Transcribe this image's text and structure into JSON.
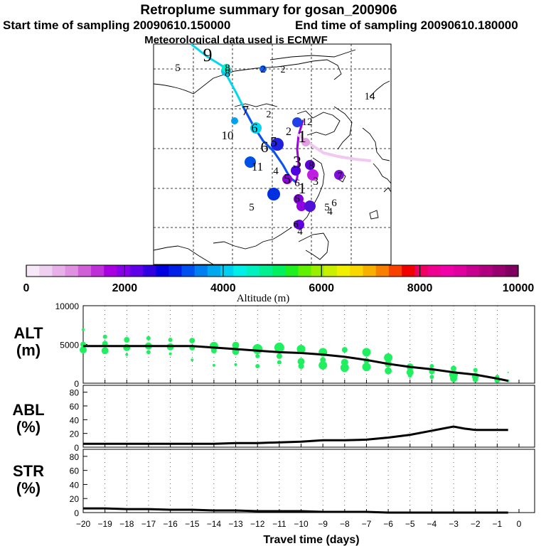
{
  "header": {
    "title": "Retroplume summary for gosan_200906",
    "start": "Start time of sampling 20090610.150000",
    "end": "End time of sampling 20090610.180000",
    "met": "Meteorological data used is ECMWF"
  },
  "colorbar": {
    "label": "Altitude (m)",
    "ticks": [
      "0",
      "2000",
      "4000",
      "6000",
      "8000",
      "10000"
    ],
    "colors": [
      "#f7e8f7",
      "#f0d0f0",
      "#e8b0e8",
      "#df90df",
      "#d060d8",
      "#c030d8",
      "#a800e0",
      "#8800e8",
      "#6000e8",
      "#3000e0",
      "#0000e0",
      "#0020e8",
      "#0050f0",
      "#0080f0",
      "#00a8f0",
      "#00d0f0",
      "#00f0e8",
      "#00f0c0",
      "#00f090",
      "#00f060",
      "#20f020",
      "#60f000",
      "#98f000",
      "#c8f000",
      "#f0f000",
      "#f8d800",
      "#f8b000",
      "#f88000",
      "#f84000",
      "#f00000",
      "#f00060",
      "#f00090",
      "#f000a8",
      "#e000a0",
      "#c80090",
      "#b00080",
      "#980070",
      "#800060"
    ]
  },
  "map": {
    "point_labels": [
      {
        "t": "9",
        "c": "#000000",
        "s": 26
      },
      {
        "t": "5",
        "c": "#000000",
        "s": 15
      },
      {
        "t": "8",
        "c": "#000000",
        "s": 16
      },
      {
        "t": "8",
        "c": "#000000",
        "s": 15
      },
      {
        "t": "2",
        "c": "#000000",
        "s": 14
      },
      {
        "t": "2",
        "c": "#000000",
        "s": 14
      },
      {
        "t": "14",
        "c": "#000000",
        "s": 15
      },
      {
        "t": "7",
        "c": "#000000",
        "s": 20
      },
      {
        "t": "2",
        "c": "#000000",
        "s": 14
      },
      {
        "t": "12",
        "c": "#000000",
        "s": 15
      },
      {
        "t": "6",
        "c": "#000000",
        "s": 18
      },
      {
        "t": "10",
        "c": "#000000",
        "s": 17
      },
      {
        "t": "2",
        "c": "#000000",
        "s": 16
      },
      {
        "t": "6",
        "c": "#000000",
        "s": 22
      },
      {
        "t": "5",
        "c": "#000000",
        "s": 20
      },
      {
        "t": "1",
        "c": "#000000",
        "s": 24
      },
      {
        "t": "11",
        "c": "#000000",
        "s": 17
      },
      {
        "t": "4",
        "c": "#000000",
        "s": 15
      },
      {
        "t": "3",
        "c": "#000000",
        "s": 24
      },
      {
        "t": "8",
        "c": "#000000",
        "s": 16
      },
      {
        "t": "7",
        "c": "#000000",
        "s": 15
      },
      {
        "t": "5",
        "c": "#000000",
        "s": 20
      },
      {
        "t": "6",
        "c": "#000000",
        "s": 15
      },
      {
        "t": "3",
        "c": "#000000",
        "s": 16
      },
      {
        "t": "1",
        "c": "#000000",
        "s": 22
      },
      {
        "t": "5",
        "c": "#000000",
        "s": 15
      },
      {
        "t": "6",
        "c": "#000000",
        "s": 15
      },
      {
        "t": "5",
        "c": "#000000",
        "s": 15
      },
      {
        "t": "4",
        "c": "#000000",
        "s": 15
      },
      {
        "t": "6",
        "c": "#000000",
        "s": 15
      },
      {
        "t": "4",
        "c": "#000000",
        "s": 15
      },
      {
        "t": "6",
        "c": "#000000",
        "s": 15
      }
    ],
    "circles": [
      {
        "c": "#00c8e8"
      },
      {
        "c": "#1060f0"
      },
      {
        "c": "#00d8f0"
      },
      {
        "c": "#0050e8"
      },
      {
        "c": "#0030e0"
      },
      {
        "c": "#2020e0"
      },
      {
        "c": "#8000e0"
      },
      {
        "c": "#c020e0"
      },
      {
        "c": "#9000e0"
      },
      {
        "c": "#6000e0"
      },
      {
        "c": "#5010d8"
      },
      {
        "c": "#5000e0"
      },
      {
        "c": "#2040e8"
      },
      {
        "c": "#8010d8"
      },
      {
        "c": "#00a0f0"
      },
      {
        "c": "#00f0d0"
      },
      {
        "c": "#e0a0e0"
      },
      {
        "c": "#9000e0"
      },
      {
        "c": "#6000e0"
      }
    ]
  },
  "chart_data": [
    {
      "type": "scatter",
      "panel": "ALT",
      "ylabel_line1": "ALT",
      "ylabel_line2": "(m)",
      "ylim": [
        0,
        10000
      ],
      "yticks": [
        "10000",
        "5000",
        "0"
      ],
      "xlim": [
        -20,
        0
      ],
      "line_x": [
        -20,
        -19,
        -18,
        -17,
        -16,
        -15,
        -14,
        -13,
        -12,
        -11,
        -10,
        -9,
        -8,
        -7,
        -6,
        -5,
        -4,
        -3,
        -2,
        -1,
        -0.5
      ],
      "line_y": [
        4800,
        4800,
        4800,
        4800,
        4800,
        4800,
        4600,
        4400,
        4200,
        4000,
        3900,
        3700,
        3400,
        3000,
        2500,
        2100,
        1800,
        1400,
        1100,
        600,
        300
      ],
      "points": [
        {
          "x": -20,
          "y": 6900,
          "r": 2
        },
        {
          "x": -20,
          "y": 5000,
          "r": 4
        },
        {
          "x": -20,
          "y": 4300,
          "r": 5
        },
        {
          "x": -19,
          "y": 6000,
          "r": 3
        },
        {
          "x": -19,
          "y": 5100,
          "r": 4
        },
        {
          "x": -19,
          "y": 4200,
          "r": 5
        },
        {
          "x": -18,
          "y": 5600,
          "r": 4
        },
        {
          "x": -18,
          "y": 4600,
          "r": 5
        },
        {
          "x": -18,
          "y": 3700,
          "r": 2
        },
        {
          "x": -17,
          "y": 5800,
          "r": 3
        },
        {
          "x": -17,
          "y": 4800,
          "r": 5
        },
        {
          "x": -17,
          "y": 4000,
          "r": 3
        },
        {
          "x": -16,
          "y": 5600,
          "r": 3
        },
        {
          "x": -16,
          "y": 4700,
          "r": 5
        },
        {
          "x": -16,
          "y": 3800,
          "r": 2
        },
        {
          "x": -15,
          "y": 5500,
          "r": 4
        },
        {
          "x": -15,
          "y": 4600,
          "r": 4
        },
        {
          "x": -15,
          "y": 3000,
          "r": 2
        },
        {
          "x": -14,
          "y": 4800,
          "r": 6
        },
        {
          "x": -14,
          "y": 4200,
          "r": 4
        },
        {
          "x": -14,
          "y": 2300,
          "r": 2
        },
        {
          "x": -13,
          "y": 4900,
          "r": 5
        },
        {
          "x": -13,
          "y": 4100,
          "r": 5
        },
        {
          "x": -13,
          "y": 2400,
          "r": 2
        },
        {
          "x": -12,
          "y": 4400,
          "r": 7
        },
        {
          "x": -12,
          "y": 3500,
          "r": 3
        },
        {
          "x": -12,
          "y": 2200,
          "r": 3
        },
        {
          "x": -11,
          "y": 4600,
          "r": 7
        },
        {
          "x": -11,
          "y": 3500,
          "r": 4
        },
        {
          "x": -11,
          "y": 2700,
          "r": 3
        },
        {
          "x": -10,
          "y": 4400,
          "r": 6
        },
        {
          "x": -10,
          "y": 2800,
          "r": 5
        },
        {
          "x": -10,
          "y": 2200,
          "r": 4
        },
        {
          "x": -9,
          "y": 4000,
          "r": 6
        },
        {
          "x": -9,
          "y": 3000,
          "r": 4
        },
        {
          "x": -9,
          "y": 2300,
          "r": 6
        },
        {
          "x": -8,
          "y": 4300,
          "r": 4
        },
        {
          "x": -8,
          "y": 2700,
          "r": 5
        },
        {
          "x": -8,
          "y": 2000,
          "r": 6
        },
        {
          "x": -7,
          "y": 4000,
          "r": 6
        },
        {
          "x": -7,
          "y": 2900,
          "r": 4
        },
        {
          "x": -7,
          "y": 2100,
          "r": 6
        },
        {
          "x": -6,
          "y": 3300,
          "r": 6
        },
        {
          "x": -6,
          "y": 2500,
          "r": 5
        },
        {
          "x": -6,
          "y": 1600,
          "r": 5
        },
        {
          "x": -5,
          "y": 2100,
          "r": 5
        },
        {
          "x": -5,
          "y": 1400,
          "r": 5
        },
        {
          "x": -5,
          "y": 1000,
          "r": 3
        },
        {
          "x": -4,
          "y": 2200,
          "r": 3
        },
        {
          "x": -4,
          "y": 1500,
          "r": 4
        },
        {
          "x": -4,
          "y": 800,
          "r": 3
        },
        {
          "x": -3,
          "y": 1900,
          "r": 4
        },
        {
          "x": -3,
          "y": 1100,
          "r": 6
        },
        {
          "x": -3,
          "y": 600,
          "r": 5
        },
        {
          "x": -2,
          "y": 1700,
          "r": 3
        },
        {
          "x": -2,
          "y": 900,
          "r": 5
        },
        {
          "x": -2,
          "y": 500,
          "r": 4
        },
        {
          "x": -1,
          "y": 800,
          "r": 3
        },
        {
          "x": -1,
          "y": 400,
          "r": 4
        },
        {
          "x": -0.5,
          "y": 1400,
          "r": 1
        },
        {
          "x": -0.5,
          "y": 300,
          "r": 2
        }
      ]
    },
    {
      "type": "line",
      "panel": "ABL",
      "ylabel_line1": "ABL",
      "ylabel_line2": "(%)",
      "ylim": [
        0,
        90
      ],
      "yticks": [
        "80",
        "60",
        "40",
        "20",
        "0"
      ],
      "xlim": [
        -20,
        0
      ],
      "x": [
        -20,
        -19,
        -18,
        -17,
        -16,
        -15,
        -14,
        -13,
        -12,
        -11,
        -10,
        -9,
        -8,
        -7,
        -6,
        -5,
        -4,
        -3.5,
        -3,
        -2.5,
        -2,
        -1,
        -0.5
      ],
      "y": [
        5,
        5,
        5,
        5,
        5,
        5,
        5,
        6,
        6,
        7,
        8,
        10,
        10,
        11,
        14,
        18,
        24,
        27,
        30,
        27,
        25,
        25,
        25
      ]
    },
    {
      "type": "line",
      "panel": "STR",
      "ylabel_line1": "STR",
      "ylabel_line2": "(%)",
      "ylim": [
        0,
        90
      ],
      "yticks": [
        "80",
        "60",
        "40",
        "20",
        "0"
      ],
      "xlim": [
        -20,
        0
      ],
      "x": [
        -20,
        -19,
        -18,
        -17,
        -16,
        -15,
        -14,
        -13,
        -12,
        -11,
        -10,
        -9,
        -8,
        -7,
        -6,
        -5,
        -4,
        -3,
        -2,
        -1,
        -0.5
      ],
      "y": [
        6,
        6,
        5,
        5,
        4,
        4,
        3,
        3,
        2,
        2,
        2,
        1,
        1,
        1,
        0,
        0,
        0,
        0,
        0,
        0,
        0
      ],
      "xlabel": "Travel time (days)",
      "xticks": [
        "−20",
        "−19",
        "−18",
        "−17",
        "−16",
        "−15",
        "−14",
        "−13",
        "−12",
        "−11",
        "−10",
        "−9",
        "−8",
        "−7",
        "−6",
        "−5",
        "−4",
        "−3",
        "−2",
        "−1",
        "0"
      ]
    }
  ]
}
